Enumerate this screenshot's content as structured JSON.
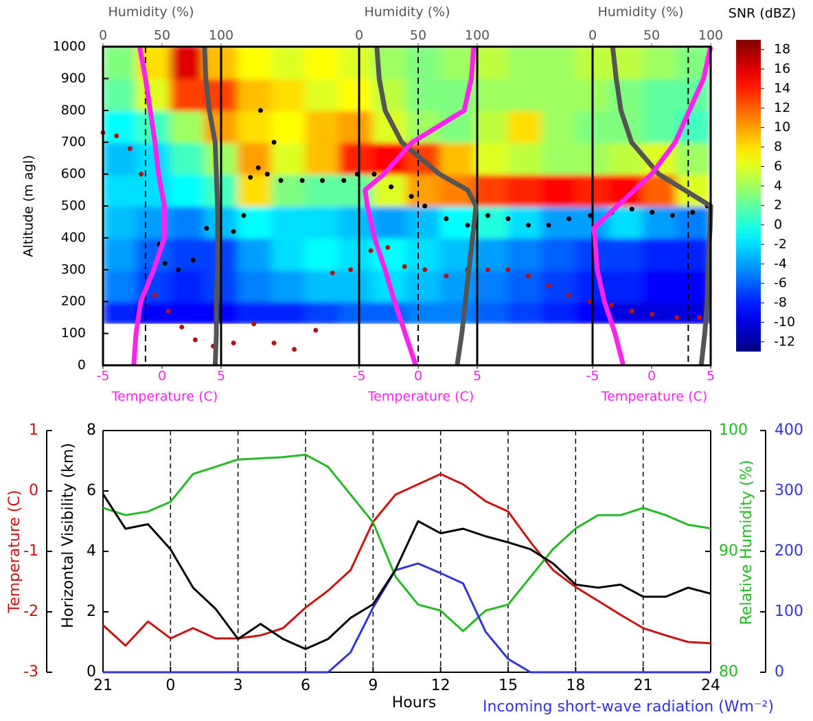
{
  "chart_data": [
    {
      "type": "heatmap",
      "ylabel": "Altitude (m agl)",
      "xlim": [
        0,
        27
      ],
      "ylim": [
        0,
        1000
      ],
      "yticks": [
        0,
        100,
        200,
        300,
        400,
        500,
        600,
        700,
        800,
        900,
        1000
      ],
      "colorbar_label": "SNR (dBZ)",
      "colormap": "jet",
      "clim": [
        -13,
        19
      ],
      "cticks": [
        -12,
        -10,
        -8,
        -6,
        -4,
        -2,
        0,
        2,
        4,
        6,
        8,
        10,
        12,
        14,
        16,
        18
      ],
      "x_bins": [
        0,
        1.5,
        3,
        4.5,
        6,
        7.5,
        9,
        10.5,
        12,
        13.5,
        15,
        16.5,
        18,
        19.5,
        21,
        22.5,
        24,
        25.5,
        27
      ],
      "y_bins": [
        130,
        200,
        300,
        400,
        500,
        600,
        700,
        800,
        900,
        1000
      ],
      "z": [
        [
          -8,
          -9,
          -9,
          -9,
          -8,
          -8,
          -7,
          -6,
          -6,
          -5,
          -5,
          -6,
          -7,
          -8,
          -9,
          -10,
          -10,
          -10
        ],
        [
          -5,
          -7,
          -8,
          -7,
          -5,
          -4,
          -3,
          -3,
          -2,
          -3,
          -4,
          -5,
          -6,
          -7,
          -8,
          -8,
          -9,
          -9
        ],
        [
          -4,
          -6,
          -7,
          -7,
          -4,
          -2,
          -1,
          -2,
          -1,
          -2,
          -3,
          -4,
          -5,
          -6,
          -7,
          -7,
          -8,
          -8
        ],
        [
          -3,
          -4,
          -5,
          -3,
          -1,
          -2,
          -2,
          -3,
          -4,
          -3,
          -1,
          0,
          -2,
          -4,
          -4,
          -2,
          -4,
          -5
        ],
        [
          -2,
          -2,
          -1,
          1,
          8,
          3,
          2,
          2,
          6,
          10,
          11,
          13,
          14,
          15,
          14,
          15,
          12,
          6
        ],
        [
          -3,
          -2,
          1,
          4,
          10,
          6,
          9,
          14,
          15,
          13,
          9,
          6,
          5,
          4,
          4,
          5,
          6,
          4
        ],
        [
          -1,
          1,
          4,
          10,
          8,
          7,
          9,
          10,
          6,
          4,
          3,
          5,
          8,
          4,
          3,
          3,
          2,
          1
        ],
        [
          2,
          6,
          13,
          13,
          9,
          8,
          6,
          7,
          5,
          3,
          3,
          4,
          4,
          4,
          4,
          3,
          2,
          2
        ],
        [
          3,
          8,
          16,
          9,
          7,
          6,
          7,
          6,
          4,
          3,
          4,
          5,
          4,
          4,
          5,
          5,
          4,
          3
        ]
      ],
      "scatter": [
        {
          "color": "#000000",
          "x": [
            2.5,
            2.75,
            3.35,
            4.0,
            4.6,
            5.2,
            5.8,
            6.25,
            6.55,
            6.9,
            7.0,
            7.3,
            7.6,
            7.9,
            8.85,
            9.75,
            10.7,
            11.3,
            12.05,
            12.8,
            13.7,
            14.3,
            15.25,
            16.2,
            17.1,
            18.0,
            18.9,
            19.8,
            20.7,
            21.65,
            22.6,
            23.5,
            24.4,
            25.3,
            26.2,
            26.85
          ],
          "y": [
            380,
            320,
            300,
            330,
            430,
            430,
            420,
            470,
            590,
            620,
            800,
            600,
            700,
            580,
            580,
            580,
            580,
            600,
            600,
            560,
            530,
            500,
            460,
            440,
            470,
            460,
            440,
            440,
            460,
            470,
            480,
            490,
            480,
            470,
            480,
            500
          ]
        },
        {
          "color": "#b31212",
          "x": [
            0,
            0.6,
            1.2,
            1.7,
            2.3,
            2.9,
            3.5,
            4.1,
            4.9,
            5.8,
            6.7,
            7.6,
            8.5,
            9.45,
            10.2,
            11.0,
            11.9,
            12.65,
            13.4,
            14.3,
            15.25,
            16.2,
            17.1,
            18.0,
            18.9,
            19.8,
            20.7,
            21.65,
            22.6,
            23.5,
            24.4,
            25.5,
            26.5
          ],
          "y": [
            730,
            720,
            680,
            600,
            220,
            170,
            120,
            80,
            60,
            70,
            130,
            70,
            50,
            110,
            290,
            300,
            360,
            370,
            310,
            300,
            280,
            300,
            300,
            300,
            280,
            250,
            220,
            200,
            190,
            170,
            160,
            150,
            150
          ]
        }
      ],
      "temperature_color": "#ff22ee",
      "humidity_color": "#555555",
      "soundings": [
        {
          "humidity_label": "Humidity (%)",
          "temperature_label": "Temperature (C)",
          "hlim": [
            0,
            100
          ],
          "hticks": [
            0,
            50,
            100
          ],
          "tlim": [
            -5,
            5
          ],
          "tticks": [
            -5,
            0,
            5
          ],
          "reference_temperature": -1.4,
          "altitude": [
            0,
            100,
            200,
            300,
            400,
            500,
            600,
            700,
            800,
            900,
            1000
          ],
          "temperature": [
            -2.4,
            -2.2,
            -1.8,
            -0.7,
            0.2,
            0.2,
            -0.3,
            -0.6,
            -1,
            -1.4,
            -1.9
          ],
          "humidity": [
            95,
            96,
            96,
            97,
            97,
            97,
            96,
            95,
            90,
            87,
            86
          ]
        },
        {
          "humidity_label": "Humidity (%)",
          "temperature_label": "Temperature (C)",
          "hlim": [
            0,
            100
          ],
          "hticks": [
            0,
            50,
            100
          ],
          "tlim": [
            -5,
            5
          ],
          "tticks": [
            -5,
            0,
            5
          ],
          "reference_temperature": 0,
          "altitude": [
            0,
            100,
            200,
            300,
            400,
            500,
            550,
            600,
            700,
            800,
            900,
            1000
          ],
          "temperature": [
            -0.2,
            -1.1,
            -2,
            -2.8,
            -3.7,
            -4.3,
            -4.5,
            -2.9,
            -0.5,
            3.9,
            4.5,
            4.7
          ],
          "humidity": [
            83,
            87,
            90,
            93,
            96,
            99,
            92,
            68,
            36,
            22,
            17,
            15
          ]
        },
        {
          "humidity_label": "Humidity (%)",
          "temperature_label": "Temperature (C)",
          "hlim": [
            0,
            100
          ],
          "hticks": [
            0,
            50,
            100
          ],
          "tlim": [
            -5,
            5
          ],
          "tticks": [
            -5,
            0,
            5
          ],
          "reference_temperature": 3.1,
          "altitude": [
            0,
            100,
            200,
            300,
            400,
            430,
            500,
            600,
            700,
            800,
            900,
            1000
          ],
          "temperature": [
            -2.4,
            -3.1,
            -4,
            -4.6,
            -4.8,
            -4.9,
            -2.9,
            0,
            2,
            3.2,
            4.4,
            5
          ],
          "humidity": [
            92,
            95,
            97,
            98,
            99,
            99.5,
            100,
            56,
            33,
            24,
            20,
            17
          ]
        }
      ]
    },
    {
      "type": "line",
      "xlabel": "Hours",
      "xlim": [
        0,
        27
      ],
      "xticks": [
        {
          "value": 0,
          "label": "21"
        },
        {
          "value": 3,
          "label": "0"
        },
        {
          "value": 6,
          "label": "3"
        },
        {
          "value": 9,
          "label": "6"
        },
        {
          "value": 12,
          "label": "9"
        },
        {
          "value": 15,
          "label": "12"
        },
        {
          "value": 18,
          "label": "15"
        },
        {
          "value": 21,
          "label": "18"
        },
        {
          "value": 24,
          "label": "21"
        },
        {
          "value": 27,
          "label": "24"
        }
      ],
      "grid": "x-dashed",
      "ylabel": "Horizontal Visibility (km)",
      "ylim": [
        0,
        8
      ],
      "yticks": [
        0,
        2,
        4,
        6,
        8
      ],
      "y2label": "Relative Humidity (%)",
      "y2lim": [
        80,
        100
      ],
      "y2ticks": [
        80,
        90,
        100
      ],
      "y3label": "Temperature (C)",
      "y3lim": [
        -3,
        1
      ],
      "y3ticks": [
        -3,
        -2,
        -1,
        0,
        1
      ],
      "y4label": "Incoming short-wave radiation (Wm⁻²)",
      "y4lim": [
        0,
        400
      ],
      "y4ticks": [
        0,
        100,
        200,
        300,
        400
      ],
      "x": [
        0,
        1,
        2,
        3,
        4,
        5,
        6,
        7,
        8,
        9,
        10,
        11,
        12,
        13,
        14,
        15,
        16,
        17,
        18,
        19,
        20,
        21,
        22,
        23,
        24,
        25,
        26,
        27
      ],
      "series": [
        {
          "axis": "y3",
          "color": "#cc1111",
          "values": [
            -2.22,
            -2.56,
            -2.16,
            -2.44,
            -2.27,
            -2.44,
            -2.44,
            -2.39,
            -2.27,
            -1.93,
            -1.65,
            -1.31,
            -0.51,
            -0.06,
            0.11,
            0.28,
            0.11,
            -0.17,
            -0.34,
            -0.85,
            -1.31,
            -1.59,
            -1.82,
            -2.05,
            -2.27,
            -2.39,
            -2.5,
            -2.52
          ]
        },
        {
          "axis": "y2",
          "color": "#22bb22",
          "values": [
            93.6,
            93,
            93.3,
            94.1,
            96.4,
            97,
            97.6,
            97.7,
            97.8,
            98,
            97,
            94.7,
            92.4,
            87.9,
            85.6,
            85.1,
            83.4,
            85.1,
            85.6,
            87.9,
            90.2,
            91.9,
            93,
            93,
            93.6,
            93,
            92.2,
            91.9
          ]
        },
        {
          "axis": "y4",
          "color": "#3333dd",
          "values": [
            0,
            0,
            0,
            0,
            0,
            0,
            0,
            0,
            0,
            0,
            0,
            33,
            107,
            169,
            180,
            164,
            147,
            67,
            22,
            0,
            0,
            0,
            0,
            0,
            0,
            0,
            0,
            0
          ]
        },
        {
          "axis": "y",
          "color": "#000000",
          "values": [
            5.9,
            4.75,
            4.9,
            4.07,
            2.8,
            2.1,
            1.1,
            1.6,
            1.1,
            0.77,
            1.1,
            1.8,
            2.25,
            3.4,
            5.0,
            4.6,
            4.75,
            4.5,
            4.3,
            4.07,
            3.6,
            2.9,
            2.8,
            2.9,
            2.5,
            2.5,
            2.8,
            2.6
          ]
        }
      ]
    }
  ]
}
